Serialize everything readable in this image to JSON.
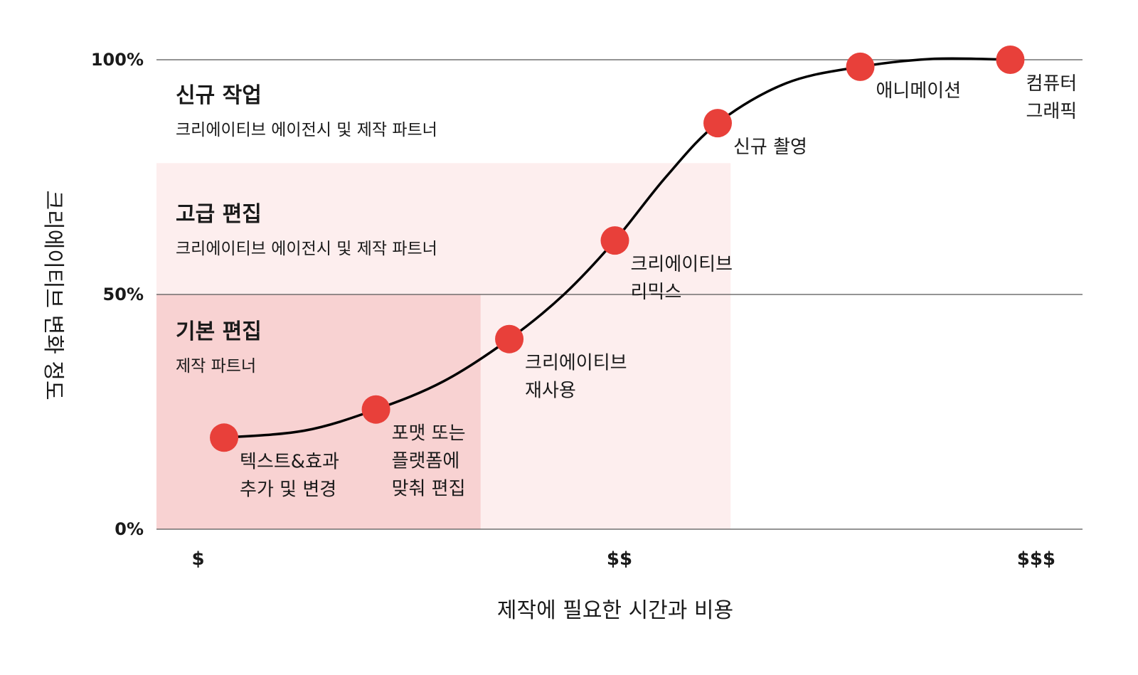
{
  "chart_data": {
    "type": "line",
    "xlabel": "제작에 필요한 시간과 비용",
    "ylabel": "크리에이티브 변화 정도",
    "ylim": [
      0,
      100
    ],
    "y_ticks": [
      {
        "value": 0,
        "label": "0%"
      },
      {
        "value": 50,
        "label": "50%"
      },
      {
        "value": 100,
        "label": "100%"
      }
    ],
    "xlim": [
      0,
      10
    ],
    "x_ticks": [
      {
        "value": 0.45,
        "label": "$"
      },
      {
        "value": 5.0,
        "label": "$$"
      },
      {
        "value": 9.5,
        "label": "$$$"
      }
    ],
    "grid": "horizontal",
    "zones": [
      {
        "title": "기본 편집",
        "subtitle": "제작 파트너",
        "x_range": [
          0,
          3.5
        ],
        "y_range": [
          0,
          50
        ],
        "color": "#f8d2d2"
      },
      {
        "title": "고급 편집",
        "subtitle": "크리에이티브 에이전시 및 제작 파트너",
        "x_range": [
          0,
          6.2
        ],
        "y_range": [
          0,
          78
        ],
        "color": "#fdeeee"
      },
      {
        "title": "신규 작업",
        "subtitle": "크리에이티브 에이전시 및 제작 파트너",
        "x_range": [
          0,
          10
        ],
        "y_range": [
          78,
          100
        ],
        "color": "#ffffff"
      }
    ],
    "points": [
      {
        "x": 0.73,
        "y": 19.5,
        "label": [
          "텍스트&효과",
          "추가 및 변경"
        ]
      },
      {
        "x": 2.37,
        "y": 25.5,
        "label": [
          "포맷 또는",
          "플랫폼에",
          "맞춰 편집"
        ]
      },
      {
        "x": 3.81,
        "y": 40.5,
        "label": [
          "크리에이티브",
          "재사용"
        ]
      },
      {
        "x": 4.95,
        "y": 61.5,
        "label": [
          "크리에이티브",
          "리믹스"
        ]
      },
      {
        "x": 6.06,
        "y": 86.5,
        "label": [
          "신규 촬영"
        ]
      },
      {
        "x": 7.6,
        "y": 98.5,
        "label": [
          "애니메이션"
        ]
      },
      {
        "x": 9.22,
        "y": 100,
        "label": [
          "컴퓨터",
          "그래픽"
        ]
      }
    ],
    "curve": [
      [
        0.73,
        19.5
      ],
      [
        1.6,
        21.0
      ],
      [
        2.37,
        25.5
      ],
      [
        3.1,
        31.5
      ],
      [
        3.81,
        40.5
      ],
      [
        4.4,
        50.0
      ],
      [
        4.95,
        61.5
      ],
      [
        5.5,
        75.0
      ],
      [
        6.06,
        86.5
      ],
      [
        6.8,
        95.0
      ],
      [
        7.6,
        98.5
      ],
      [
        8.4,
        100.2
      ],
      [
        9.22,
        100
      ]
    ],
    "colors": {
      "point": "#e8403a",
      "line": "#000000",
      "grid": "#555555"
    }
  }
}
